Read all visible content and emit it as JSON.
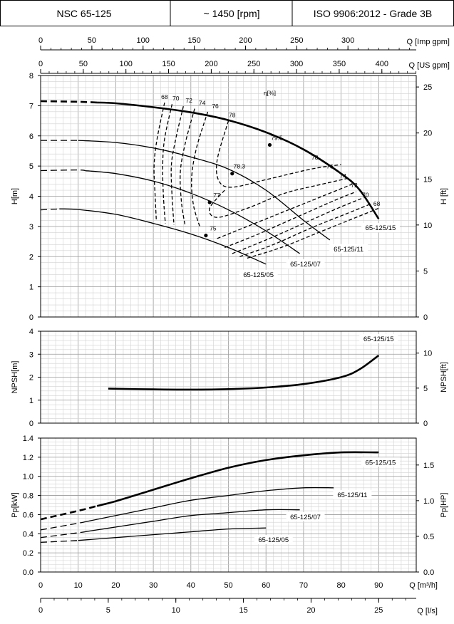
{
  "header": {
    "model": "NSC 65-125",
    "speed": "~ 1450 [rpm]",
    "standard": "ISO 9906:2012 - Grade 3B"
  },
  "top_axes": [
    {
      "label": "Q [Imp gpm]",
      "ticks": [
        0,
        50,
        100,
        150,
        200,
        250,
        300
      ]
    },
    {
      "label": "Q [US gpm]",
      "ticks": [
        0,
        50,
        100,
        150,
        200,
        250,
        300,
        350,
        400
      ]
    }
  ],
  "bottom_axes": [
    {
      "label": "Q [m³/h]",
      "ticks": [
        0,
        10,
        20,
        30,
        40,
        50,
        60,
        70,
        80,
        90
      ]
    },
    {
      "label": "Q [l/s]",
      "ticks": [
        0,
        5,
        10,
        15,
        20,
        25
      ]
    }
  ],
  "chart_data": [
    {
      "type": "line",
      "panel": "head",
      "ylabel": "H[m]",
      "ylabel_right": "H [ft]",
      "xlim": [
        0,
        100
      ],
      "ylim": [
        0,
        8
      ],
      "yticks": [
        0,
        1,
        2,
        3,
        4,
        5,
        6,
        7,
        8
      ],
      "yticks_right": [
        0,
        5,
        10,
        15,
        20,
        25
      ],
      "efficiency_title": "η[%]",
      "series": [
        {
          "name": "65-125/15",
          "bold": true,
          "dashed_x": [
            0,
            15
          ],
          "x": [
            0,
            10,
            20,
            30,
            40,
            50,
            60,
            70,
            80,
            85,
            90
          ],
          "y": [
            7.15,
            7.13,
            7.08,
            6.95,
            6.78,
            6.52,
            6.12,
            5.55,
            4.75,
            4.2,
            3.25
          ]
        },
        {
          "name": "65-125/11",
          "dashed_x": [
            0,
            10
          ],
          "x": [
            0,
            10,
            20,
            30,
            40,
            50,
            60,
            70,
            77
          ],
          "y": [
            5.85,
            5.85,
            5.78,
            5.6,
            5.3,
            4.9,
            4.2,
            3.2,
            2.55
          ]
        },
        {
          "name": "65-125/07",
          "dashed_x": [
            0,
            12
          ],
          "x": [
            0,
            10,
            20,
            30,
            40,
            50,
            60,
            69
          ],
          "y": [
            4.85,
            4.87,
            4.75,
            4.5,
            4.1,
            3.55,
            2.85,
            2.1
          ]
        },
        {
          "name": "65-125/05",
          "dashed_x": [
            0,
            5
          ],
          "x": [
            0,
            5,
            10,
            20,
            30,
            40,
            50,
            60
          ],
          "y": [
            3.55,
            3.58,
            3.56,
            3.4,
            3.1,
            2.75,
            2.3,
            1.75
          ]
        }
      ],
      "efficiency_curves": [
        {
          "label": "68",
          "x": [
            33,
            31,
            30.2,
            30.5,
            30.8
          ],
          "y": [
            7.1,
            5.9,
            5.0,
            4.0,
            3.2
          ]
        },
        {
          "label": "70",
          "x": [
            35,
            33,
            32.5,
            32.7,
            33.2
          ],
          "y": [
            7.05,
            5.9,
            5.0,
            4.0,
            3.1
          ]
        },
        {
          "label": "72",
          "x": [
            38,
            35.8,
            34.8,
            35,
            35.5
          ],
          "y": [
            6.98,
            5.8,
            5.0,
            4.0,
            3.05
          ]
        },
        {
          "label": "74",
          "x": [
            41,
            38.5,
            37.2,
            37.5,
            38.5
          ],
          "y": [
            6.9,
            5.75,
            4.8,
            3.8,
            3.0
          ]
        },
        {
          "label": "76",
          "x": [
            44.5,
            41.5,
            40.2,
            40.7,
            42.5
          ],
          "y": [
            6.8,
            5.6,
            4.6,
            3.7,
            2.95
          ]
        },
        {
          "label": "78",
          "x": [
            50,
            47,
            47.5,
            51,
            60,
            72,
            80
          ],
          "y": [
            6.5,
            5.2,
            4.5,
            4.3,
            4.55,
            4.9,
            5.05
          ]
        },
        {
          "label": "77",
          "x": [
            49,
            45,
            47,
            55,
            65,
            75,
            82
          ],
          "y": [
            4.2,
            3.6,
            3.3,
            3.6,
            4.1,
            4.4,
            4.6
          ]
        },
        {
          "label": "76",
          "x": [
            47,
            55,
            65,
            75,
            83
          ],
          "y": [
            2.6,
            3.0,
            3.5,
            4.0,
            4.4
          ]
        },
        {
          "label": "74",
          "x": [
            49,
            58,
            68,
            78,
            84
          ],
          "y": [
            2.3,
            2.75,
            3.3,
            3.85,
            4.15
          ]
        },
        {
          "label": "72",
          "x": [
            51,
            60,
            70,
            80,
            86
          ],
          "y": [
            2.1,
            2.55,
            3.1,
            3.65,
            3.95
          ]
        },
        {
          "label": "70",
          "x": [
            53,
            62,
            72,
            82,
            88
          ],
          "y": [
            2.0,
            2.4,
            2.95,
            3.45,
            3.75
          ]
        },
        {
          "label": "68",
          "x": [
            55,
            64,
            74,
            84,
            90
          ],
          "y": [
            1.95,
            2.3,
            2.8,
            3.3,
            3.6
          ]
        }
      ],
      "efficiency_points": [
        {
          "label": "79.5",
          "x": 61,
          "y": 5.7
        },
        {
          "label": "78.3",
          "x": 51,
          "y": 4.75
        },
        {
          "label": "77",
          "x": 45,
          "y": 3.8
        },
        {
          "label": "75",
          "x": 44,
          "y": 2.7
        }
      ],
      "efficiency_side_labels": [
        "78",
        "76",
        "74",
        "72",
        "70",
        "68"
      ]
    },
    {
      "type": "line",
      "panel": "npsh",
      "ylabel": "NPSH[m]",
      "ylabel_right": "NPSH[ft]",
      "xlim": [
        0,
        100
      ],
      "ylim": [
        0,
        4
      ],
      "yticks": [
        0,
        1,
        2,
        3,
        4
      ],
      "yticks_right": [
        0,
        5,
        10
      ],
      "series": [
        {
          "name": "65-125/15",
          "x": [
            18,
            30,
            40,
            50,
            60,
            70,
            80,
            85,
            90
          ],
          "y": [
            1.5,
            1.47,
            1.46,
            1.48,
            1.55,
            1.7,
            2.0,
            2.35,
            2.95
          ]
        }
      ]
    },
    {
      "type": "line",
      "panel": "power",
      "ylabel": "Pp[kW]",
      "ylabel_right": "Pp[HP]",
      "xlim": [
        0,
        100
      ],
      "ylim": [
        0,
        1.4
      ],
      "yticks": [
        "0.0",
        "0.2",
        "0.4",
        "0.6",
        "0.8",
        "1.0",
        "1.2",
        "1.4"
      ],
      "yticks_right": [
        "0.0",
        "0.5",
        "1.0",
        "1.5"
      ],
      "series": [
        {
          "name": "65-125/15",
          "bold": true,
          "dashed_x": [
            0,
            15
          ],
          "x": [
            0,
            10,
            20,
            30,
            40,
            50,
            60,
            70,
            80,
            90
          ],
          "y": [
            0.55,
            0.64,
            0.74,
            0.86,
            0.98,
            1.09,
            1.17,
            1.22,
            1.25,
            1.25
          ]
        },
        {
          "name": "65-125/11",
          "dashed_x": [
            0,
            12
          ],
          "x": [
            0,
            10,
            20,
            30,
            40,
            50,
            60,
            70,
            78
          ],
          "y": [
            0.44,
            0.51,
            0.59,
            0.67,
            0.75,
            0.8,
            0.85,
            0.88,
            0.88
          ]
        },
        {
          "name": "65-125/07",
          "dashed_x": [
            0,
            12
          ],
          "x": [
            0,
            10,
            20,
            30,
            40,
            50,
            60,
            69
          ],
          "y": [
            0.36,
            0.41,
            0.47,
            0.53,
            0.59,
            0.62,
            0.65,
            0.65
          ]
        },
        {
          "name": "65-125/05",
          "dashed_x": [
            0,
            10
          ],
          "x": [
            0,
            10,
            20,
            30,
            40,
            50,
            60
          ],
          "y": [
            0.31,
            0.33,
            0.36,
            0.39,
            0.42,
            0.45,
            0.46
          ]
        }
      ]
    }
  ]
}
